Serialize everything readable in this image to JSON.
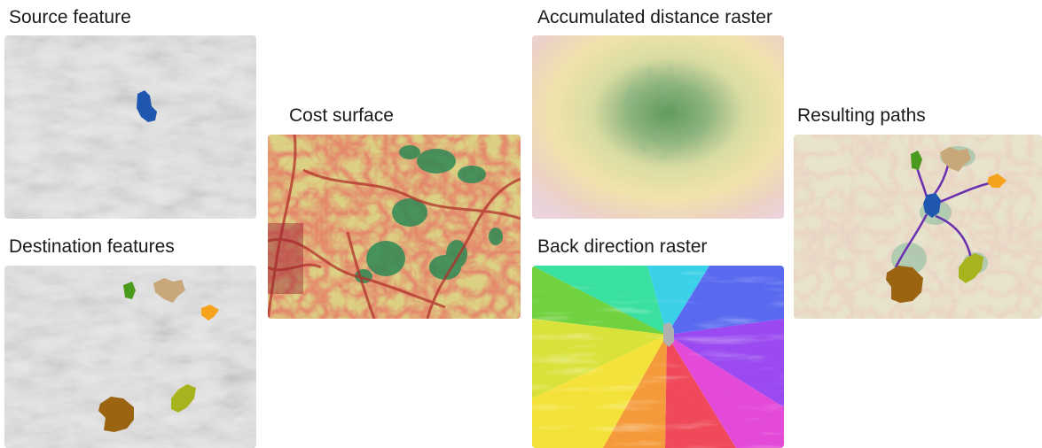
{
  "labels": {
    "source_feature": "Source feature",
    "destination_features": "Destination features",
    "cost_surface": "Cost surface",
    "accumulated_distance": "Accumulated distance raster",
    "back_direction": "Back direction raster",
    "resulting_paths": "Resulting paths"
  },
  "colors": {
    "source": "#1f57b0",
    "dest_green": "#4a9a1e",
    "dest_tan": "#c8a77a",
    "dest_orange": "#f5a21c",
    "dest_brown": "#9a6410",
    "dest_olive": "#a7b41e",
    "path": "#6a2fb0"
  }
}
